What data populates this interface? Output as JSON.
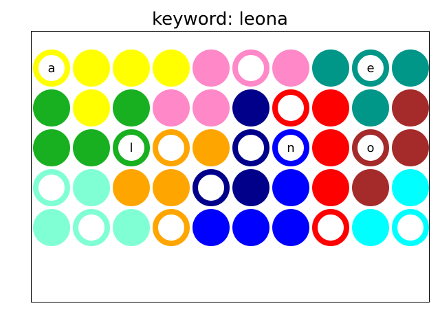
{
  "title": "keyword: leona",
  "colors": {
    "yellow": "#ffff00",
    "pink": "#ff88c8",
    "teal": "#009688",
    "green": "#18b020",
    "navy": "#00008b",
    "red": "#ff0000",
    "brown": "#a52a2a",
    "orange": "#ffa500",
    "mint": "#80ffd4",
    "blue": "#0000ff",
    "cyan": "#00ffff"
  },
  "grid": {
    "rows": [
      [
        {
          "color": "yellow",
          "style": "ring",
          "letter": "a"
        },
        {
          "color": "yellow",
          "style": "filled",
          "letter": ""
        },
        {
          "color": "yellow",
          "style": "filled",
          "letter": ""
        },
        {
          "color": "yellow",
          "style": "filled",
          "letter": ""
        },
        {
          "color": "pink",
          "style": "filled",
          "letter": ""
        },
        {
          "color": "pink",
          "style": "ring",
          "letter": ""
        },
        {
          "color": "pink",
          "style": "filled",
          "letter": ""
        },
        {
          "color": "teal",
          "style": "filled",
          "letter": ""
        },
        {
          "color": "teal",
          "style": "ring",
          "letter": "e"
        },
        {
          "color": "teal",
          "style": "filled",
          "letter": ""
        }
      ],
      [
        {
          "color": "green",
          "style": "filled",
          "letter": ""
        },
        {
          "color": "yellow",
          "style": "filled",
          "letter": ""
        },
        {
          "color": "green",
          "style": "filled",
          "letter": ""
        },
        {
          "color": "pink",
          "style": "filled",
          "letter": ""
        },
        {
          "color": "pink",
          "style": "filled",
          "letter": ""
        },
        {
          "color": "navy",
          "style": "filled",
          "letter": ""
        },
        {
          "color": "red",
          "style": "ring",
          "letter": ""
        },
        {
          "color": "red",
          "style": "filled",
          "letter": ""
        },
        {
          "color": "teal",
          "style": "filled",
          "letter": ""
        },
        {
          "color": "brown",
          "style": "filled",
          "letter": ""
        }
      ],
      [
        {
          "color": "green",
          "style": "filled",
          "letter": ""
        },
        {
          "color": "green",
          "style": "filled",
          "letter": ""
        },
        {
          "color": "green",
          "style": "ring",
          "letter": "l"
        },
        {
          "color": "orange",
          "style": "ring",
          "letter": ""
        },
        {
          "color": "orange",
          "style": "filled",
          "letter": ""
        },
        {
          "color": "navy",
          "style": "ring",
          "letter": ""
        },
        {
          "color": "blue",
          "style": "ring",
          "letter": "n"
        },
        {
          "color": "red",
          "style": "filled",
          "letter": ""
        },
        {
          "color": "brown",
          "style": "ring",
          "letter": "o"
        },
        {
          "color": "brown",
          "style": "filled",
          "letter": ""
        }
      ],
      [
        {
          "color": "mint",
          "style": "ring",
          "letter": ""
        },
        {
          "color": "mint",
          "style": "filled",
          "letter": ""
        },
        {
          "color": "orange",
          "style": "filled",
          "letter": ""
        },
        {
          "color": "orange",
          "style": "filled",
          "letter": ""
        },
        {
          "color": "navy",
          "style": "ring",
          "letter": ""
        },
        {
          "color": "navy",
          "style": "filled",
          "letter": ""
        },
        {
          "color": "blue",
          "style": "filled",
          "letter": ""
        },
        {
          "color": "red",
          "style": "filled",
          "letter": ""
        },
        {
          "color": "brown",
          "style": "filled",
          "letter": ""
        },
        {
          "color": "cyan",
          "style": "filled",
          "letter": ""
        }
      ],
      [
        {
          "color": "mint",
          "style": "filled",
          "letter": ""
        },
        {
          "color": "mint",
          "style": "ring",
          "letter": ""
        },
        {
          "color": "mint",
          "style": "filled",
          "letter": ""
        },
        {
          "color": "orange",
          "style": "ring",
          "letter": ""
        },
        {
          "color": "blue",
          "style": "filled",
          "letter": ""
        },
        {
          "color": "blue",
          "style": "filled",
          "letter": ""
        },
        {
          "color": "blue",
          "style": "filled",
          "letter": ""
        },
        {
          "color": "red",
          "style": "ring",
          "letter": ""
        },
        {
          "color": "cyan",
          "style": "filled",
          "letter": ""
        },
        {
          "color": "cyan",
          "style": "ring",
          "letter": ""
        }
      ]
    ]
  }
}
